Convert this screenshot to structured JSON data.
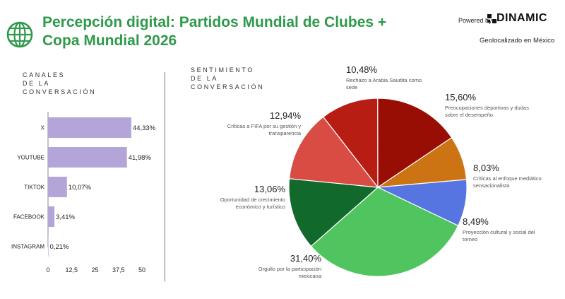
{
  "header": {
    "title_line1": "Percepción digital: Partidos Mundial de Clubes +",
    "title_line2": "Copa Mundial 2026",
    "powered_by": "Powered by",
    "brand": "DINAMIC",
    "geo": "Geolocalizado en México"
  },
  "colors": {
    "title": "#2e9a4a",
    "bar": "#b3a5d7"
  },
  "chart_data": [
    {
      "type": "bar",
      "orientation": "horizontal",
      "title": "CANALES\nDE LA\nCONVERSACIÓN",
      "categories": [
        "X",
        "YOUTUBE",
        "TIKTOK",
        "FACEBOOK",
        "INSTAGRAM"
      ],
      "values": [
        44.33,
        41.98,
        10.07,
        3.41,
        0.21
      ],
      "value_labels": [
        "44,33%",
        "41,98%",
        "10,07%",
        "3,41%",
        "0,21%"
      ],
      "xlim": [
        0,
        50
      ],
      "xticks": [
        0,
        12.5,
        25,
        37.5,
        50
      ],
      "xtick_labels": [
        "0",
        "12,5",
        "25",
        "37,5",
        "50"
      ],
      "color": "#b3a5d7",
      "grid": false
    },
    {
      "type": "pie",
      "title": "SENTIMIENTO\nDE LA\nCONVERSACIÓN",
      "slices": [
        {
          "label": "Rechazo a Arabia Saudita como sede",
          "value": 10.48,
          "pct_label": "10,48%",
          "color": "#b81d14"
        },
        {
          "label": "Preocupaciones deportivas y dudas sobre el desempeño",
          "value": 15.6,
          "pct_label": "15,60%",
          "color": "#980d04"
        },
        {
          "label": "Críticas al enfoque mediático sensacionalista",
          "value": 8.03,
          "pct_label": "8,03%",
          "color": "#cc7414"
        },
        {
          "label": "Proyección cultural y social del torneo",
          "value": 8.49,
          "pct_label": "8,49%",
          "color": "#5775e0"
        },
        {
          "label": "Orgullo por la participación mexicana",
          "value": 31.4,
          "pct_label": "31,40%",
          "color": "#4fc45f"
        },
        {
          "label": "Oportunidad de crecimiento económico y turístico",
          "value": 13.06,
          "pct_label": "13,06%",
          "color": "#12692c"
        },
        {
          "label": "Críticas a FIFA por su gestión y transparencia",
          "value": 12.94,
          "pct_label": "12,94%",
          "color": "#d94c43"
        }
      ]
    }
  ]
}
